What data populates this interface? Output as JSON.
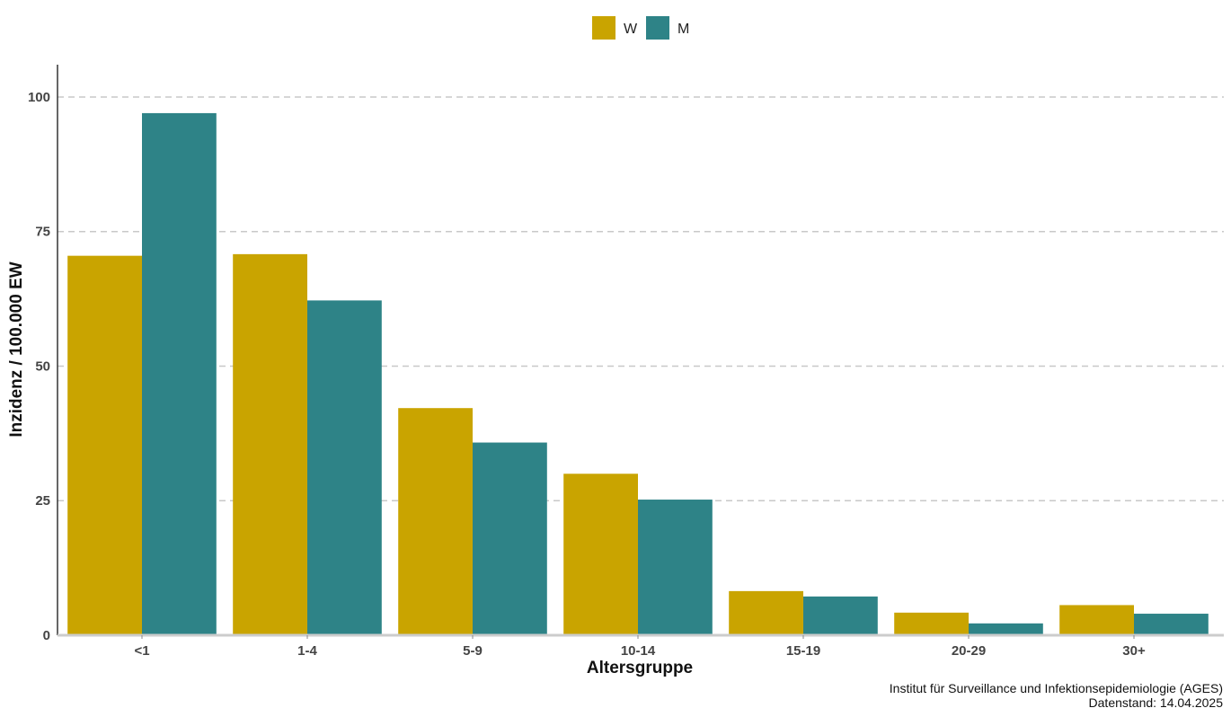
{
  "chart_data": {
    "type": "bar",
    "xlabel": "Altersgruppe",
    "ylabel": "Inzidenz / 100.000 EW",
    "categories": [
      "<1",
      "1-4",
      "5-9",
      "10-14",
      "15-19",
      "20-29",
      "30+"
    ],
    "series": [
      {
        "name": "W",
        "color": "#C9A400",
        "values": [
          70.5,
          70.8,
          42.2,
          30.0,
          8.2,
          4.2,
          5.6
        ]
      },
      {
        "name": "M",
        "color": "#2E8387",
        "values": [
          97.0,
          62.2,
          35.8,
          25.2,
          7.2,
          2.2,
          4.0
        ]
      }
    ],
    "ylim": [
      0,
      106
    ],
    "yticks": [
      "0",
      "25",
      "50",
      "75",
      "100"
    ],
    "ytick_values": [
      0,
      25,
      50,
      75,
      100
    ],
    "grid": "horizontal-dashed",
    "legend_position": "top-center"
  },
  "caption": {
    "line1": "Institut für Surveillance und Infektionsepidemiologie (AGES)",
    "line2": "Datenstand: 14.04.2025"
  }
}
